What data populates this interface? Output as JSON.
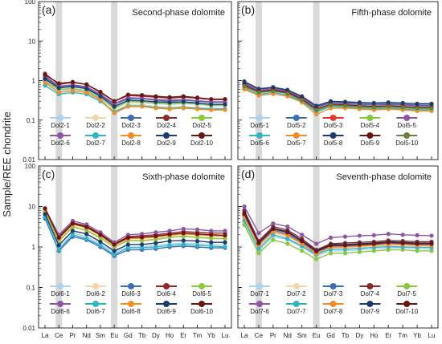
{
  "ylabel": "Sample/REE chondrite",
  "x_ticks": [
    "La",
    "Ce",
    "Pr",
    "Nd",
    "Sm",
    "Eu",
    "Gd",
    "Tb",
    "Dy",
    "Ho",
    "Er",
    "Tm",
    "Yb",
    "Lu"
  ],
  "y_ticks": [
    "100",
    "10",
    "1",
    "0.1",
    "0.01"
  ],
  "chart_data": [
    {
      "type": "line",
      "panel": "(a)",
      "title": "Second-phase dolomite",
      "x": [
        "La",
        "Ce",
        "Pr",
        "Nd",
        "Sm",
        "Eu",
        "Gd",
        "Tb",
        "Dy",
        "Ho",
        "Er",
        "Tm",
        "Yb",
        "Lu"
      ],
      "yscale": "log",
      "ylim": [
        0.01,
        100
      ],
      "grid": false,
      "shaded_columns": [
        "Ce",
        "Eu"
      ],
      "legend_placement": "bottom",
      "series": [
        {
          "name": "Dol2-1",
          "color": "#aad4ee",
          "values": [
            0.95,
            0.55,
            0.6,
            0.55,
            0.35,
            0.2,
            0.28,
            0.28,
            0.26,
            0.25,
            0.26,
            0.25,
            0.23,
            0.23
          ]
        },
        {
          "name": "Dol2-2",
          "color": "#f2d7a6",
          "values": [
            0.85,
            0.5,
            0.55,
            0.5,
            0.32,
            0.17,
            0.25,
            0.25,
            0.22,
            0.22,
            0.22,
            0.21,
            0.2,
            0.2
          ]
        },
        {
          "name": "Dol2-3",
          "color": "#3a6fb5",
          "values": [
            1.2,
            0.7,
            0.75,
            0.65,
            0.42,
            0.25,
            0.35,
            0.35,
            0.32,
            0.3,
            0.32,
            0.3,
            0.28,
            0.28
          ]
        },
        {
          "name": "Dol2-4",
          "color": "#8c2a2a",
          "values": [
            1.5,
            0.8,
            0.9,
            0.8,
            0.5,
            0.3,
            0.42,
            0.4,
            0.38,
            0.36,
            0.38,
            0.36,
            0.33,
            0.33
          ]
        },
        {
          "name": "Dol2-5",
          "color": "#8dc63f",
          "values": [
            1.0,
            0.6,
            0.62,
            0.56,
            0.36,
            0.2,
            0.3,
            0.29,
            0.27,
            0.26,
            0.27,
            0.26,
            0.24,
            0.24
          ]
        },
        {
          "name": "Dol2-6",
          "color": "#8e55a3",
          "values": [
            1.3,
            0.72,
            0.78,
            0.7,
            0.45,
            0.26,
            0.37,
            0.36,
            0.33,
            0.32,
            0.33,
            0.31,
            0.29,
            0.29
          ]
        },
        {
          "name": "Dol2-7",
          "color": "#33b3c4",
          "values": [
            0.75,
            0.45,
            0.5,
            0.45,
            0.3,
            0.16,
            0.23,
            0.23,
            0.21,
            0.2,
            0.21,
            0.2,
            0.19,
            0.19
          ]
        },
        {
          "name": "Dol2-8",
          "color": "#f08c2a",
          "values": [
            0.9,
            0.5,
            0.55,
            0.5,
            0.33,
            0.15,
            0.22,
            0.22,
            0.2,
            0.19,
            0.2,
            0.19,
            0.18,
            0.18
          ]
        },
        {
          "name": "Dol2-9",
          "color": "#1c3b6e",
          "values": [
            1.1,
            0.65,
            0.7,
            0.62,
            0.4,
            0.22,
            0.32,
            0.31,
            0.29,
            0.28,
            0.29,
            0.27,
            0.25,
            0.25
          ]
        },
        {
          "name": "Dol2-10",
          "color": "#6b1414",
          "values": [
            1.4,
            0.85,
            0.92,
            0.8,
            0.52,
            0.3,
            0.44,
            0.43,
            0.4,
            0.38,
            0.4,
            0.37,
            0.34,
            0.34
          ]
        }
      ]
    },
    {
      "type": "line",
      "panel": "(b)",
      "title": "Fifth-phase dolomite",
      "x": [
        "La",
        "Ce",
        "Pr",
        "Nd",
        "Sm",
        "Eu",
        "Gd",
        "Tb",
        "Dy",
        "Ho",
        "Er",
        "Tm",
        "Yb",
        "Lu"
      ],
      "yscale": "log",
      "ylim": [
        0.01,
        100
      ],
      "grid": false,
      "shaded_columns": [
        "Ce",
        "Eu"
      ],
      "legend_placement": "bottom",
      "series": [
        {
          "name": "Dol5-1",
          "color": "#aad4ee",
          "values": [
            0.8,
            0.55,
            0.6,
            0.5,
            0.35,
            0.2,
            0.26,
            0.25,
            0.24,
            0.23,
            0.24,
            0.23,
            0.22,
            0.22
          ]
        },
        {
          "name": "Dol5-2",
          "color": "#3a6fb5",
          "values": [
            0.9,
            0.6,
            0.65,
            0.55,
            0.38,
            0.22,
            0.28,
            0.27,
            0.26,
            0.25,
            0.26,
            0.25,
            0.24,
            0.24
          ]
        },
        {
          "name": "Dol5-3",
          "color": "#e23a2a",
          "values": [
            0.7,
            0.5,
            0.55,
            0.48,
            0.32,
            0.18,
            0.24,
            0.23,
            0.22,
            0.21,
            0.22,
            0.21,
            0.2,
            0.2
          ]
        },
        {
          "name": "Dol5-4",
          "color": "#8dc63f",
          "values": [
            0.75,
            0.52,
            0.56,
            0.49,
            0.33,
            0.17,
            0.23,
            0.22,
            0.21,
            0.2,
            0.21,
            0.2,
            0.19,
            0.19
          ]
        },
        {
          "name": "Dol5-5",
          "color": "#8e55a3",
          "values": [
            0.85,
            0.58,
            0.62,
            0.53,
            0.37,
            0.21,
            0.27,
            0.26,
            0.25,
            0.24,
            0.25,
            0.24,
            0.23,
            0.23
          ]
        },
        {
          "name": "Dol5-6",
          "color": "#33b3c4",
          "values": [
            0.65,
            0.45,
            0.5,
            0.43,
            0.3,
            0.16,
            0.22,
            0.21,
            0.2,
            0.19,
            0.2,
            0.19,
            0.18,
            0.18
          ]
        },
        {
          "name": "Dol5-7",
          "color": "#f08c2a",
          "values": [
            0.6,
            0.42,
            0.46,
            0.4,
            0.28,
            0.14,
            0.2,
            0.2,
            0.19,
            0.18,
            0.19,
            0.18,
            0.17,
            0.17
          ]
        },
        {
          "name": "Dol5-8",
          "color": "#1c3b6e",
          "values": [
            0.95,
            0.62,
            0.68,
            0.58,
            0.4,
            0.23,
            0.3,
            0.29,
            0.28,
            0.27,
            0.28,
            0.27,
            0.26,
            0.26
          ]
        },
        {
          "name": "Dol5-9",
          "color": "#6b1414",
          "values": [
            0.78,
            0.53,
            0.58,
            0.5,
            0.34,
            0.19,
            0.25,
            0.24,
            0.23,
            0.22,
            0.23,
            0.22,
            0.21,
            0.21
          ]
        },
        {
          "name": "Dol5-10",
          "color": "#6b7f3a",
          "values": [
            0.72,
            0.5,
            0.54,
            0.47,
            0.32,
            0.18,
            0.24,
            0.23,
            0.22,
            0.21,
            0.22,
            0.21,
            0.2,
            0.2
          ]
        }
      ]
    },
    {
      "type": "line",
      "panel": "(c)",
      "title": "Sixth-phase dolomite",
      "x": [
        "La",
        "Ce",
        "Pr",
        "Nd",
        "Sm",
        "Eu",
        "Gd",
        "Tb",
        "Dy",
        "Ho",
        "Er",
        "Tm",
        "Yb",
        "Lu"
      ],
      "yscale": "log",
      "ylim": [
        0.01,
        100
      ],
      "grid": false,
      "shaded_columns": [
        "Ce",
        "Eu"
      ],
      "legend_placement": "bottom",
      "series": [
        {
          "name": "Dol6-1",
          "color": "#aad4ee",
          "values": [
            6,
            0.9,
            2.2,
            1.8,
            1.2,
            0.75,
            1.0,
            1.0,
            1.1,
            1.2,
            1.25,
            1.2,
            1.15,
            1.1
          ]
        },
        {
          "name": "Dol6-2",
          "color": "#f2d7a6",
          "values": [
            7,
            1.3,
            3.0,
            2.5,
            1.6,
            1.0,
            1.4,
            1.4,
            1.5,
            1.7,
            1.8,
            1.7,
            1.6,
            1.6
          ]
        },
        {
          "name": "Dol6-3",
          "color": "#3a6fb5",
          "values": [
            5,
            0.8,
            1.8,
            1.5,
            1.0,
            0.6,
            0.85,
            0.85,
            0.9,
            1.0,
            1.05,
            1.0,
            0.95,
            0.95
          ]
        },
        {
          "name": "Dol6-4",
          "color": "#8c2a2a",
          "values": [
            8,
            1.8,
            4.0,
            3.3,
            2.1,
            1.2,
            1.8,
            1.9,
            2.0,
            2.2,
            2.4,
            2.3,
            2.2,
            2.2
          ]
        },
        {
          "name": "Dol6-5",
          "color": "#8dc63f",
          "values": [
            7.5,
            1.4,
            3.2,
            2.6,
            1.7,
            1.0,
            1.45,
            1.45,
            1.55,
            1.75,
            1.85,
            1.75,
            1.65,
            1.6
          ]
        },
        {
          "name": "Dol6-6",
          "color": "#8e55a3",
          "values": [
            9,
            2.0,
            4.4,
            3.6,
            2.3,
            1.3,
            2.0,
            2.1,
            2.3,
            2.5,
            2.8,
            2.7,
            2.5,
            2.5
          ]
        },
        {
          "name": "Dol6-7",
          "color": "#33b3c4",
          "values": [
            5.5,
            0.85,
            2.0,
            1.6,
            1.1,
            0.65,
            0.95,
            0.95,
            1.0,
            1.1,
            1.15,
            1.1,
            1.05,
            1.0
          ]
        },
        {
          "name": "Dol6-8",
          "color": "#f08c2a",
          "values": [
            8.5,
            1.6,
            3.6,
            3.0,
            1.9,
            1.1,
            1.6,
            1.65,
            1.75,
            1.95,
            2.1,
            2.0,
            1.9,
            1.85
          ]
        },
        {
          "name": "Dol6-9",
          "color": "#1c3b6e",
          "values": [
            6.5,
            1.1,
            2.5,
            2.1,
            1.35,
            0.8,
            1.15,
            1.15,
            1.25,
            1.4,
            1.45,
            1.4,
            1.3,
            1.3
          ]
        },
        {
          "name": "Dol6-10",
          "color": "#6b1414",
          "values": [
            9,
            1.7,
            3.8,
            3.1,
            2.0,
            1.15,
            1.7,
            1.75,
            1.85,
            2.05,
            2.2,
            2.1,
            2.0,
            1.95
          ]
        }
      ]
    },
    {
      "type": "line",
      "panel": "(d)",
      "title": "Seventh-phase dolomite",
      "x": [
        "La",
        "Ce",
        "Pr",
        "Nd",
        "Sm",
        "Eu",
        "Gd",
        "Tb",
        "Dy",
        "Ho",
        "Er",
        "Tm",
        "Yb",
        "Lu"
      ],
      "yscale": "log",
      "ylim": [
        0.01,
        100
      ],
      "grid": false,
      "shaded_columns": [
        "Ce",
        "Eu"
      ],
      "legend_placement": "bottom",
      "series": [
        {
          "name": "Dol7-1",
          "color": "#aad4ee",
          "values": [
            4,
            0.8,
            1.8,
            1.5,
            1.0,
            0.6,
            0.8,
            0.8,
            0.85,
            0.9,
            0.95,
            0.95,
            0.9,
            0.9
          ]
        },
        {
          "name": "Dol7-2",
          "color": "#f2d7a6",
          "values": [
            5,
            1.0,
            2.2,
            1.8,
            1.15,
            0.7,
            0.95,
            0.95,
            1.0,
            1.05,
            1.1,
            1.1,
            1.05,
            1.05
          ]
        },
        {
          "name": "Dol7-3",
          "color": "#3a6fb5",
          "values": [
            6,
            1.2,
            2.6,
            2.1,
            1.3,
            0.75,
            1.05,
            1.05,
            1.1,
            1.15,
            1.25,
            1.2,
            1.15,
            1.15
          ]
        },
        {
          "name": "Dol7-4",
          "color": "#8c2a2a",
          "values": [
            8,
            1.4,
            3.2,
            2.6,
            1.6,
            0.85,
            1.2,
            1.25,
            1.3,
            1.35,
            1.45,
            1.4,
            1.35,
            1.35
          ]
        },
        {
          "name": "Dol7-5",
          "color": "#8dc63f",
          "values": [
            3.5,
            0.7,
            1.5,
            1.2,
            0.8,
            0.5,
            0.7,
            0.7,
            0.75,
            0.8,
            0.85,
            0.85,
            0.8,
            0.8
          ]
        },
        {
          "name": "Dol7-6",
          "color": "#8e55a3",
          "values": [
            10,
            2.2,
            3.8,
            3.2,
            2.0,
            1.2,
            1.7,
            1.8,
            1.9,
            1.95,
            2.1,
            2.0,
            1.95,
            1.9
          ]
        },
        {
          "name": "Dol7-7",
          "color": "#33b3c4",
          "values": [
            4.5,
            0.9,
            2.0,
            1.6,
            1.05,
            0.65,
            0.88,
            0.88,
            0.92,
            0.98,
            1.02,
            1.0,
            0.98,
            0.98
          ]
        },
        {
          "name": "Dol7-8",
          "color": "#f08c2a",
          "values": [
            5.5,
            1.1,
            2.4,
            1.95,
            1.2,
            0.68,
            1.0,
            1.0,
            1.05,
            1.1,
            1.15,
            1.15,
            1.1,
            1.1
          ]
        },
        {
          "name": "Dol7-9",
          "color": "#1c3b6e",
          "values": [
            7,
            1.3,
            2.9,
            2.4,
            1.45,
            0.8,
            1.15,
            1.15,
            1.2,
            1.25,
            1.35,
            1.3,
            1.25,
            1.25
          ]
        },
        {
          "name": "Dol7-10",
          "color": "#6b1414",
          "values": [
            6.5,
            1.25,
            2.8,
            2.3,
            1.4,
            0.78,
            1.1,
            1.1,
            1.15,
            1.2,
            1.3,
            1.25,
            1.2,
            1.2
          ]
        }
      ]
    }
  ]
}
